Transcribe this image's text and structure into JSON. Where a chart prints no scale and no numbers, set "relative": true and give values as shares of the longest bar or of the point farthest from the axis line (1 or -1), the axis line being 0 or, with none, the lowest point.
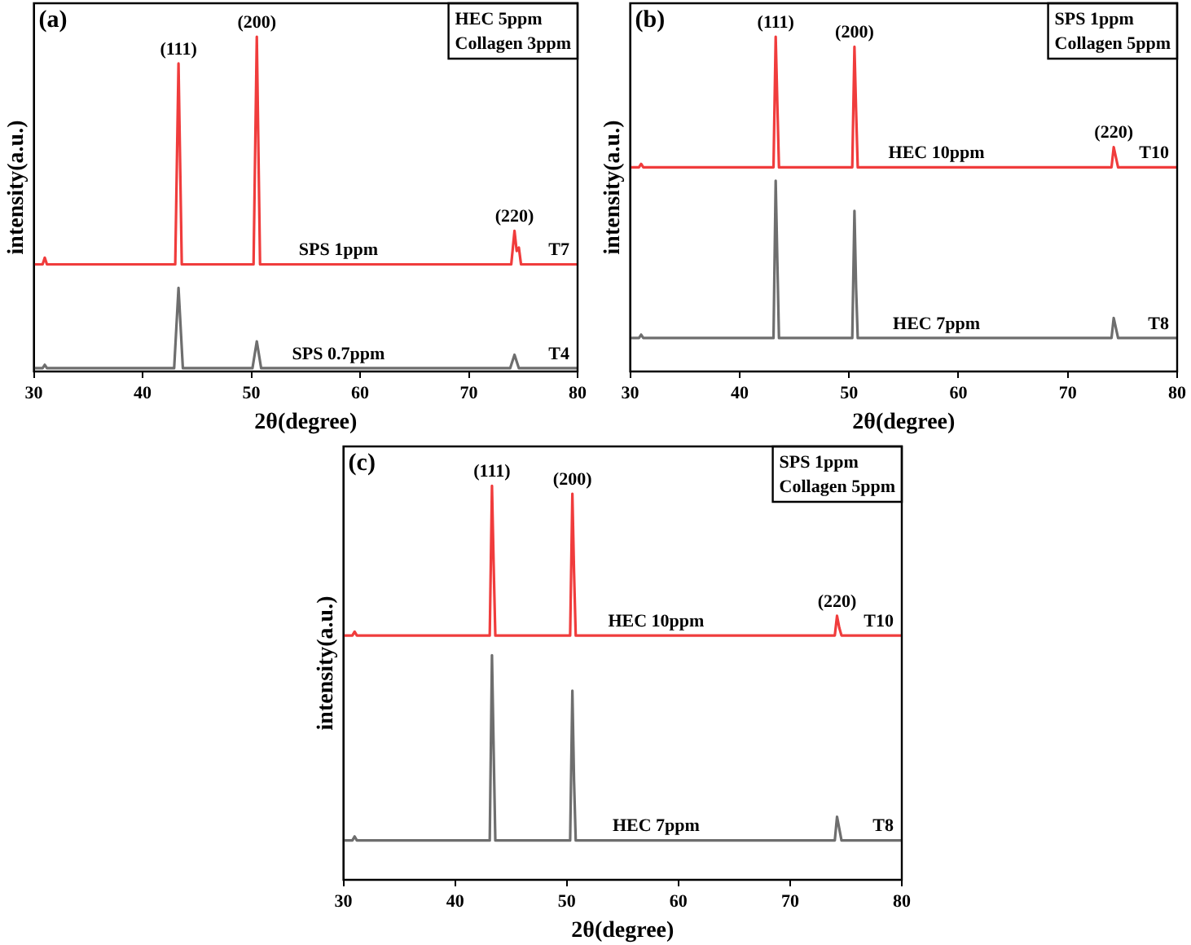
{
  "chart_data": [
    {
      "type": "line",
      "title": "(a)",
      "xlabel": "2θ(degree)",
      "ylabel": "intensity(a.u.)",
      "xlim": [
        30,
        80
      ],
      "xticks": [
        30,
        40,
        50,
        60,
        70,
        80
      ],
      "relative": true,
      "grid": false,
      "legend": false,
      "marker": "none",
      "series": [
        {
          "name": "SPS 1ppm",
          "color": "#f03c3c",
          "x": [
            30,
            30.8,
            31,
            31.2,
            43.0,
            43.3,
            43.6,
            50.2,
            50.5,
            50.8,
            73.9,
            74.2,
            74.4,
            74.6,
            74.8,
            80
          ],
          "values": [
            0.32,
            0.32,
            0.34,
            0.32,
            0.32,
            0.92,
            0.32,
            0.32,
            1,
            0.32,
            0.32,
            0.42,
            0.36,
            0.37,
            0.32,
            0.32
          ]
        },
        {
          "name": "SPS 0.7ppm",
          "color": "#6e6e6e",
          "x": [
            30,
            30.8,
            31,
            31.2,
            42.9,
            43.3,
            43.7,
            50.1,
            50.5,
            50.9,
            73.8,
            74.2,
            74.6,
            80
          ],
          "values": [
            0.01,
            0.01,
            0.02,
            0.01,
            0.01,
            0.25,
            0.01,
            0.01,
            0.09,
            0.01,
            0.01,
            0.05,
            0.01,
            0.01
          ]
        }
      ],
      "annotations": [
        "HEC 5ppm",
        "Collagen 3ppm",
        {
          "text": "(111)",
          "x": 43.3,
          "y": 0.92
        },
        {
          "text": "(200)",
          "x": 50.5,
          "y": 1
        },
        {
          "text": "(220)",
          "x": 74.2,
          "y": 0.42
        },
        {
          "text": "T7",
          "x": 80,
          "y": 0.32
        },
        {
          "text": "T4",
          "x": 80,
          "y": 0.01
        }
      ]
    },
    {
      "type": "line",
      "title": "(b)",
      "xlabel": "2θ(degree)",
      "ylabel": "intensity(a.u.)",
      "xlim": [
        30,
        80
      ],
      "xticks": [
        30,
        40,
        50,
        60,
        70,
        80
      ],
      "relative": true,
      "grid": false,
      "legend": false,
      "marker": "none",
      "series": [
        {
          "name": "HEC 10ppm",
          "color": "#f03c3c",
          "x": [
            30,
            30.8,
            31,
            31.2,
            43.1,
            43.3,
            43.45,
            43.6,
            50.3,
            50.5,
            50.65,
            50.8,
            74.0,
            74.2,
            74.4,
            74.6,
            80
          ],
          "values": [
            0.61,
            0.61,
            0.62,
            0.61,
            0.61,
            1,
            0.8,
            0.61,
            0.61,
            0.97,
            0.78,
            0.61,
            0.61,
            0.67,
            0.64,
            0.61,
            0.61
          ]
        },
        {
          "name": "HEC 7ppm",
          "color": "#6e6e6e",
          "x": [
            30,
            30.8,
            31,
            31.2,
            43.1,
            43.3,
            43.45,
            43.6,
            50.3,
            50.5,
            50.65,
            50.8,
            74.0,
            74.2,
            74.4,
            74.6,
            80
          ],
          "values": [
            0.1,
            0.1,
            0.11,
            0.1,
            0.1,
            0.57,
            0.33,
            0.1,
            0.1,
            0.48,
            0.25,
            0.1,
            0.1,
            0.16,
            0.13,
            0.1,
            0.1
          ]
        }
      ],
      "annotations": [
        "SPS 1ppm",
        "Collagen 5ppm",
        {
          "text": "(111)",
          "x": 43.3,
          "y": 1
        },
        {
          "text": "(200)",
          "x": 50.5,
          "y": 0.97
        },
        {
          "text": "(220)",
          "x": 74.2,
          "y": 0.67
        },
        {
          "text": "T10",
          "x": 80,
          "y": 0.61
        },
        {
          "text": "T8",
          "x": 80,
          "y": 0.1
        }
      ]
    },
    {
      "type": "line",
      "title": "(c)",
      "xlabel": "2θ(degree)",
      "ylabel": "intensity(a.u.)",
      "xlim": [
        30,
        80
      ],
      "xticks": [
        30,
        40,
        50,
        60,
        70,
        80
      ],
      "relative": true,
      "grid": false,
      "legend": false,
      "marker": "none",
      "series": [
        {
          "name": "HEC 10ppm",
          "color": "#f03c3c",
          "x": [
            30,
            30.8,
            31,
            31.2,
            43.1,
            43.3,
            43.45,
            43.6,
            50.3,
            50.5,
            50.65,
            50.8,
            74.0,
            74.2,
            74.4,
            74.6,
            80
          ],
          "values": [
            0.62,
            0.62,
            0.63,
            0.62,
            0.62,
            1,
            0.8,
            0.62,
            0.62,
            0.98,
            0.78,
            0.62,
            0.62,
            0.67,
            0.64,
            0.62,
            0.62
          ]
        },
        {
          "name": "HEC 7ppm",
          "color": "#6e6e6e",
          "x": [
            30,
            30.8,
            31,
            31.2,
            43.1,
            43.3,
            43.45,
            43.6,
            50.3,
            50.5,
            50.65,
            50.8,
            74.0,
            74.2,
            74.4,
            74.6,
            80
          ],
          "values": [
            0.1,
            0.1,
            0.11,
            0.1,
            0.1,
            0.57,
            0.33,
            0.1,
            0.1,
            0.48,
            0.25,
            0.1,
            0.1,
            0.16,
            0.13,
            0.1,
            0.1
          ]
        }
      ],
      "annotations": [
        "SPS 1ppm",
        "Collagen 5ppm",
        {
          "text": "(111)",
          "x": 43.3,
          "y": 1
        },
        {
          "text": "(200)",
          "x": 50.5,
          "y": 0.98
        },
        {
          "text": "(220)",
          "x": 74.2,
          "y": 0.67
        },
        {
          "text": "T10",
          "x": 80,
          "y": 0.62
        },
        {
          "text": "T8",
          "x": 80,
          "y": 0.1
        }
      ]
    }
  ]
}
